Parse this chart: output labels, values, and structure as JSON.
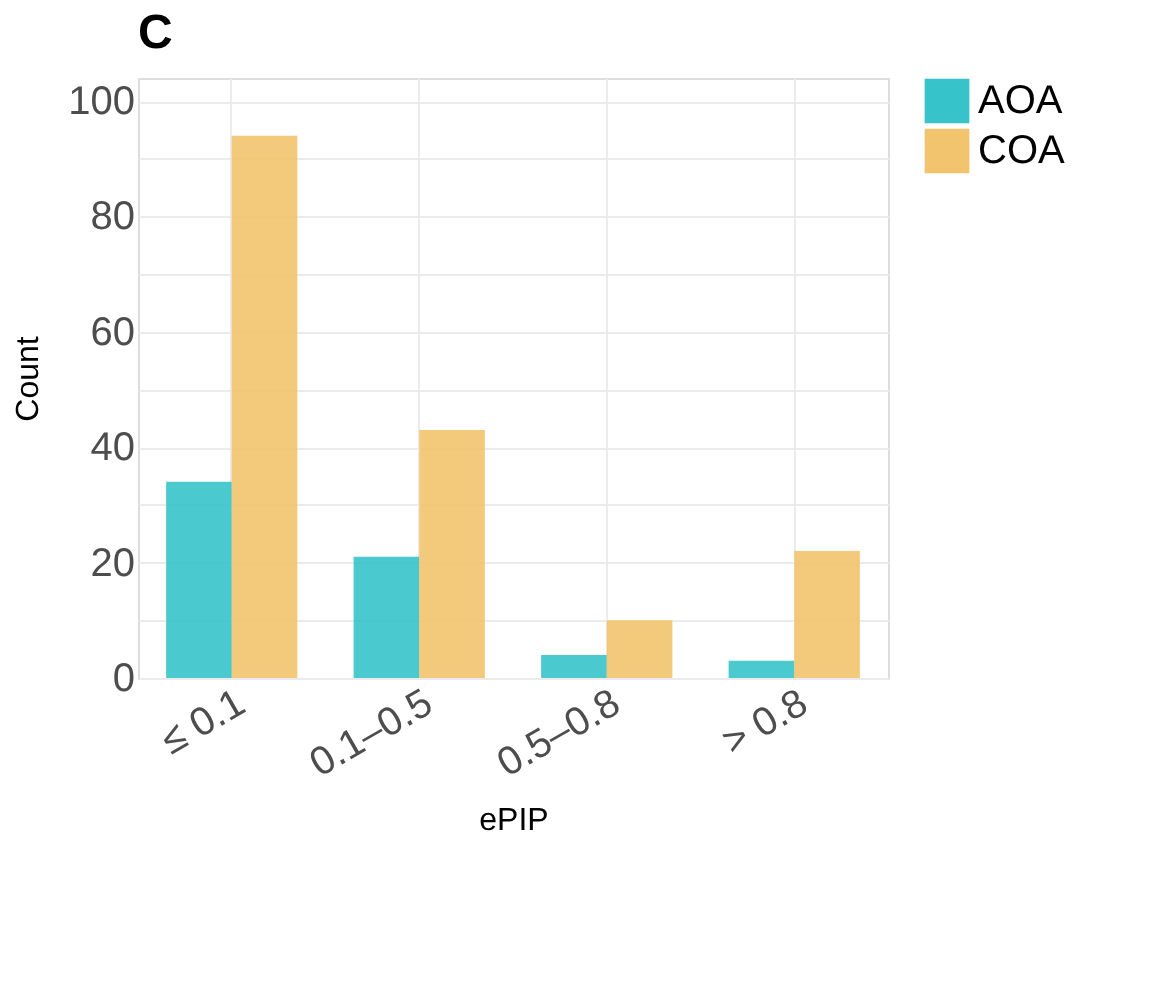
{
  "chart_data": {
    "type": "bar",
    "title": "C",
    "xlabel": "ePIP",
    "ylabel": "Count",
    "categories": [
      "≤ 0.1",
      "0.1–0.5",
      "0.5–0.8",
      "> 0.8"
    ],
    "series": [
      {
        "name": "AOA",
        "color": "#36c3c9",
        "values": [
          34,
          21,
          4,
          3
        ]
      },
      {
        "name": "COA",
        "color": "#f2c46d",
        "values": [
          94,
          43,
          10,
          22
        ]
      }
    ],
    "ylim": [
      0,
      104
    ],
    "yticks": [
      0,
      {
        "value": 10,
        "label": null
      },
      20,
      {
        "value": 30,
        "label": null
      },
      40,
      {
        "value": 50,
        "label": null
      },
      60,
      {
        "value": 70,
        "label": null
      },
      80,
      {
        "value": 90,
        "label": null
      },
      100
    ],
    "grid": true,
    "legend": "right"
  }
}
